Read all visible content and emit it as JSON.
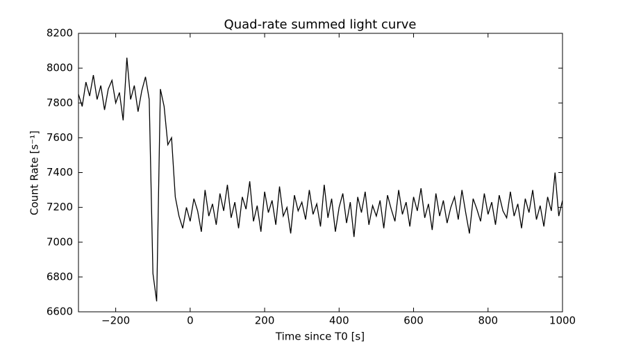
{
  "chart_data": {
    "type": "line",
    "title": "Quad-rate summed light curve",
    "x_label": "Time since T0 [s]",
    "y_label": "Count Rate [s⁻¹]",
    "x": [
      -300,
      -290,
      -280,
      -270,
      -260,
      -250,
      -240,
      -230,
      -220,
      -210,
      -200,
      -190,
      -180,
      -170,
      -160,
      -150,
      -140,
      -130,
      -120,
      -110,
      -100,
      -90,
      -80,
      -70,
      -60,
      -50,
      -40,
      -30,
      -20,
      -10,
      0,
      10,
      20,
      30,
      40,
      50,
      60,
      70,
      80,
      90,
      100,
      110,
      120,
      130,
      140,
      150,
      160,
      170,
      180,
      190,
      200,
      210,
      220,
      230,
      240,
      250,
      260,
      270,
      280,
      290,
      300,
      310,
      320,
      330,
      340,
      350,
      360,
      370,
      380,
      390,
      400,
      410,
      420,
      430,
      440,
      450,
      460,
      470,
      480,
      490,
      500,
      510,
      520,
      530,
      540,
      550,
      560,
      570,
      580,
      590,
      600,
      610,
      620,
      630,
      640,
      650,
      660,
      670,
      680,
      690,
      700,
      710,
      720,
      730,
      740,
      750,
      760,
      770,
      780,
      790,
      800,
      810,
      820,
      830,
      840,
      850,
      860,
      870,
      880,
      890,
      900,
      910,
      920,
      930,
      940,
      950,
      960,
      970,
      980,
      990,
      1000
    ],
    "series": [
      {
        "name": "light curve",
        "color": "#000000",
        "values": [
          7850,
          7780,
          7920,
          7840,
          7960,
          7820,
          7900,
          7760,
          7880,
          7930,
          7800,
          7860,
          7700,
          8060,
          7820,
          7900,
          7750,
          7870,
          7950,
          7820,
          6820,
          6660,
          7880,
          7780,
          7560,
          7600,
          7260,
          7150,
          7080,
          7200,
          7120,
          7250,
          7180,
          7060,
          7300,
          7150,
          7220,
          7100,
          7280,
          7180,
          7330,
          7140,
          7230,
          7080,
          7260,
          7190,
          7350,
          7120,
          7210,
          7060,
          7290,
          7170,
          7240,
          7100,
          7320,
          7150,
          7200,
          7050,
          7270,
          7180,
          7230,
          7130,
          7300,
          7160,
          7220,
          7090,
          7330,
          7140,
          7250,
          7060,
          7200,
          7280,
          7110,
          7230,
          7030,
          7260,
          7170,
          7290,
          7100,
          7210,
          7150,
          7240,
          7080,
          7270,
          7190,
          7120,
          7300,
          7160,
          7230,
          7090,
          7260,
          7180,
          7310,
          7140,
          7220,
          7070,
          7280,
          7150,
          7240,
          7110,
          7200,
          7260,
          7130,
          7300,
          7170,
          7050,
          7250,
          7190,
          7120,
          7280,
          7160,
          7230,
          7100,
          7270,
          7180,
          7140,
          7290,
          7150,
          7220,
          7080,
          7250,
          7170,
          7300,
          7130,
          7210,
          7090,
          7260,
          7180,
          7400,
          7150,
          7240
        ]
      }
    ],
    "xlim": [
      -300,
      1000
    ],
    "xticks": [
      {
        "value": -200,
        "label": "−200"
      },
      0,
      200,
      400,
      600,
      800,
      1000
    ],
    "ylim": [
      6600,
      8200
    ],
    "yticks": [
      6600,
      6800,
      7000,
      7200,
      7400,
      7600,
      7800,
      8000,
      8200
    ]
  }
}
